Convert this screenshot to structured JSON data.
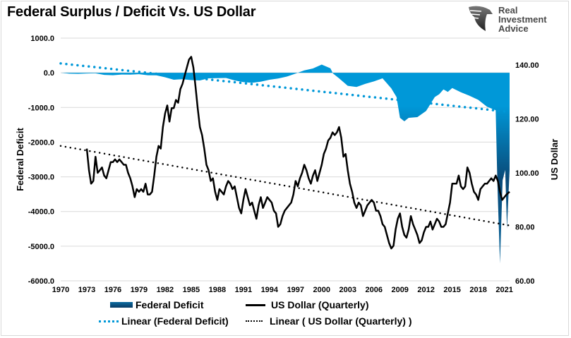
{
  "chart_data": {
    "type": "area+line",
    "title": "Federal Surplus / Deficit Vs. US Dollar",
    "brand": {
      "name_lines": [
        "Real",
        "Investment",
        "Advice"
      ]
    },
    "left_axis": {
      "label": "Federal Deficit",
      "range": [
        -6000,
        1000
      ],
      "ticks": [
        1000,
        0,
        -1000,
        -2000,
        -3000,
        -4000,
        -5000,
        -6000
      ],
      "tick_labels": [
        "1000.0",
        "0.0",
        "-1000.0",
        "-2000.0",
        "-3000.0",
        "-4000.0",
        "-5000.0",
        "-6000.0"
      ]
    },
    "right_axis": {
      "label": "US Dollar",
      "range": [
        60,
        150
      ],
      "ticks": [
        140,
        120,
        100,
        80,
        60
      ],
      "tick_labels": [
        "140.00",
        "120.00",
        "100.00",
        "80.00",
        "60.00"
      ]
    },
    "x_axis": {
      "range": [
        1970,
        2021.6
      ],
      "ticks": [
        1970,
        1973,
        1976,
        1979,
        1982,
        1985,
        1988,
        1991,
        1994,
        1997,
        2000,
        2003,
        2006,
        2009,
        2012,
        2015,
        2018,
        2021
      ],
      "tick_labels": [
        "1970",
        "1973",
        "1976",
        "1979",
        "1982",
        "1985",
        "1988",
        "1991",
        "1994",
        "1997",
        "2000",
        "2003",
        "2006",
        "2009",
        "2012",
        "2015",
        "2018",
        "2021"
      ]
    },
    "grid": true,
    "colors": {
      "deficit": "#0098d8",
      "deficit_dark": "#0a3c64",
      "dollar": "#000000",
      "deficit_trend": "#0098d8",
      "dollar_trend": "#000000",
      "grid": "#d9d9d9"
    },
    "series": [
      {
        "name": "Federal Deficit",
        "axis": "left",
        "style": "area",
        "points": [
          [
            1970,
            0
          ],
          [
            1971,
            -25
          ],
          [
            1972,
            -30
          ],
          [
            1973,
            -20
          ],
          [
            1974,
            -15
          ],
          [
            1975,
            -60
          ],
          [
            1976,
            -70
          ],
          [
            1977,
            -50
          ],
          [
            1978,
            -55
          ],
          [
            1979,
            -40
          ],
          [
            1980,
            -70
          ],
          [
            1981,
            -75
          ],
          [
            1982,
            -130
          ],
          [
            1983,
            -200
          ],
          [
            1984,
            -185
          ],
          [
            1985,
            -210
          ],
          [
            1986,
            -220
          ],
          [
            1987,
            -160
          ],
          [
            1988,
            -155
          ],
          [
            1989,
            -150
          ],
          [
            1990,
            -220
          ],
          [
            1991,
            -270
          ],
          [
            1992,
            -290
          ],
          [
            1993,
            -255
          ],
          [
            1994,
            -200
          ],
          [
            1995,
            -165
          ],
          [
            1996,
            -110
          ],
          [
            1997,
            -22
          ],
          [
            1998,
            70
          ],
          [
            1999,
            125
          ],
          [
            2000,
            236
          ],
          [
            2001,
            130
          ],
          [
            2001.3,
            -20
          ],
          [
            2002,
            -160
          ],
          [
            2003,
            -375
          ],
          [
            2004,
            -410
          ],
          [
            2005,
            -320
          ],
          [
            2006,
            -250
          ],
          [
            2007,
            -160
          ],
          [
            2008,
            -450
          ],
          [
            2008.6,
            -700
          ],
          [
            2009,
            -1300
          ],
          [
            2009.5,
            -1400
          ],
          [
            2010,
            -1300
          ],
          [
            2011,
            -1280
          ],
          [
            2012,
            -1100
          ],
          [
            2013,
            -700
          ],
          [
            2013.5,
            -620
          ],
          [
            2014,
            -480
          ],
          [
            2014.5,
            -550
          ],
          [
            2015,
            -440
          ],
          [
            2016,
            -560
          ],
          [
            2017,
            -665
          ],
          [
            2018,
            -780
          ],
          [
            2019,
            -980
          ],
          [
            2020,
            -1080
          ],
          [
            2020.2,
            -3200
          ],
          [
            2020.5,
            -5500
          ],
          [
            2020.8,
            -3100
          ],
          [
            2021.1,
            -2800
          ],
          [
            2021.3,
            -4500
          ],
          [
            2021.6,
            -2800
          ]
        ]
      },
      {
        "name": "US Dollar (Quarterly)",
        "axis": "right",
        "style": "line",
        "points": [
          [
            1973,
            109
          ],
          [
            1973.25,
            101
          ],
          [
            1973.5,
            96
          ],
          [
            1973.75,
            97
          ],
          [
            1974,
            106
          ],
          [
            1974.25,
            100
          ],
          [
            1974.5,
            101
          ],
          [
            1974.75,
            102
          ],
          [
            1975,
            99
          ],
          [
            1975.25,
            98
          ],
          [
            1975.5,
            101
          ],
          [
            1975.75,
            104
          ],
          [
            1976,
            104
          ],
          [
            1976.25,
            105
          ],
          [
            1976.5,
            104
          ],
          [
            1976.75,
            105
          ],
          [
            1977,
            104
          ],
          [
            1977.25,
            103
          ],
          [
            1977.5,
            103
          ],
          [
            1977.75,
            100
          ],
          [
            1978,
            98
          ],
          [
            1978.25,
            95
          ],
          [
            1978.5,
            91
          ],
          [
            1978.75,
            94
          ],
          [
            1979,
            93
          ],
          [
            1979.25,
            94
          ],
          [
            1979.5,
            93
          ],
          [
            1979.75,
            96
          ],
          [
            1980,
            92
          ],
          [
            1980.25,
            92
          ],
          [
            1980.5,
            93
          ],
          [
            1980.75,
            99
          ],
          [
            1981,
            106
          ],
          [
            1981.25,
            110
          ],
          [
            1981.5,
            109
          ],
          [
            1981.75,
            117
          ],
          [
            1982,
            122
          ],
          [
            1982.25,
            125
          ],
          [
            1982.5,
            119
          ],
          [
            1982.75,
            124
          ],
          [
            1983,
            124
          ],
          [
            1983.25,
            127
          ],
          [
            1983.5,
            126
          ],
          [
            1983.75,
            131
          ],
          [
            1984,
            133
          ],
          [
            1984.25,
            136
          ],
          [
            1984.5,
            139
          ],
          [
            1984.75,
            142
          ],
          [
            1985,
            143
          ],
          [
            1985.25,
            139
          ],
          [
            1985.5,
            132
          ],
          [
            1985.75,
            124
          ],
          [
            1986,
            117
          ],
          [
            1986.25,
            114
          ],
          [
            1986.5,
            109
          ],
          [
            1986.75,
            103
          ],
          [
            1987,
            101
          ],
          [
            1987.25,
            97
          ],
          [
            1987.5,
            98
          ],
          [
            1987.75,
            93
          ],
          [
            1988,
            90
          ],
          [
            1988.25,
            94
          ],
          [
            1988.5,
            93
          ],
          [
            1988.75,
            92
          ],
          [
            1989,
            95
          ],
          [
            1989.25,
            97
          ],
          [
            1989.5,
            96
          ],
          [
            1989.75,
            94
          ],
          [
            1990,
            95
          ],
          [
            1990.25,
            91
          ],
          [
            1990.5,
            87
          ],
          [
            1990.75,
            85
          ],
          [
            1991,
            90
          ],
          [
            1991.25,
            94
          ],
          [
            1991.5,
            91
          ],
          [
            1991.75,
            88
          ],
          [
            1992,
            89
          ],
          [
            1992.25,
            86
          ],
          [
            1992.5,
            83
          ],
          [
            1992.75,
            88
          ],
          [
            1993,
            91
          ],
          [
            1993.25,
            87
          ],
          [
            1993.5,
            89
          ],
          [
            1993.75,
            91
          ],
          [
            1994,
            90
          ],
          [
            1994.25,
            89
          ],
          [
            1994.5,
            86
          ],
          [
            1994.75,
            85
          ],
          [
            1995,
            80
          ],
          [
            1995.25,
            81
          ],
          [
            1995.5,
            84
          ],
          [
            1995.75,
            86
          ],
          [
            1996,
            87
          ],
          [
            1996.25,
            88
          ],
          [
            1996.5,
            89
          ],
          [
            1996.75,
            92
          ],
          [
            1997,
            97
          ],
          [
            1997.25,
            95
          ],
          [
            1997.5,
            98
          ],
          [
            1997.75,
            100
          ],
          [
            1998,
            103
          ],
          [
            1998.25,
            101
          ],
          [
            1998.5,
            98
          ],
          [
            1998.75,
            96
          ],
          [
            1999,
            99
          ],
          [
            1999.25,
            101
          ],
          [
            1999.5,
            97
          ],
          [
            1999.75,
            100
          ],
          [
            2000,
            103
          ],
          [
            2000.25,
            107
          ],
          [
            2000.5,
            109
          ],
          [
            2000.75,
            112
          ],
          [
            2001,
            113
          ],
          [
            2001.25,
            115
          ],
          [
            2001.5,
            114
          ],
          [
            2001.75,
            115
          ],
          [
            2002,
            117
          ],
          [
            2002.25,
            113
          ],
          [
            2002.5,
            106
          ],
          [
            2002.75,
            107
          ],
          [
            2003,
            101
          ],
          [
            2003.25,
            96
          ],
          [
            2003.5,
            93
          ],
          [
            2003.75,
            89
          ],
          [
            2004,
            87
          ],
          [
            2004.25,
            89
          ],
          [
            2004.5,
            88
          ],
          [
            2004.75,
            84
          ],
          [
            2005,
            86
          ],
          [
            2005.25,
            88
          ],
          [
            2005.5,
            89
          ],
          [
            2005.75,
            90
          ],
          [
            2006,
            89
          ],
          [
            2006.25,
            86
          ],
          [
            2006.5,
            86
          ],
          [
            2006.75,
            84
          ],
          [
            2007,
            81
          ],
          [
            2007.25,
            80
          ],
          [
            2007.5,
            77
          ],
          [
            2007.75,
            74
          ],
          [
            2008,
            72
          ],
          [
            2008.25,
            73
          ],
          [
            2008.5,
            79
          ],
          [
            2008.75,
            83
          ],
          [
            2009,
            85
          ],
          [
            2009.25,
            80
          ],
          [
            2009.5,
            77
          ],
          [
            2009.75,
            76
          ],
          [
            2010,
            79
          ],
          [
            2010.25,
            84
          ],
          [
            2010.5,
            81
          ],
          [
            2010.75,
            79
          ],
          [
            2011,
            77
          ],
          [
            2011.25,
            74
          ],
          [
            2011.5,
            75
          ],
          [
            2011.75,
            78
          ],
          [
            2012,
            80
          ],
          [
            2012.25,
            80
          ],
          [
            2012.5,
            82
          ],
          [
            2012.75,
            79
          ],
          [
            2013,
            81
          ],
          [
            2013.25,
            83
          ],
          [
            2013.5,
            82
          ],
          [
            2013.75,
            80
          ],
          [
            2014,
            80
          ],
          [
            2014.25,
            81
          ],
          [
            2014.5,
            85
          ],
          [
            2014.75,
            89
          ],
          [
            2015,
            96
          ],
          [
            2015.25,
            96
          ],
          [
            2015.5,
            96
          ],
          [
            2015.75,
            99
          ],
          [
            2016,
            95
          ],
          [
            2016.25,
            94
          ],
          [
            2016.5,
            95
          ],
          [
            2016.75,
            102
          ],
          [
            2017,
            100
          ],
          [
            2017.25,
            96
          ],
          [
            2017.5,
            93
          ],
          [
            2017.75,
            92
          ],
          [
            2018,
            90
          ],
          [
            2018.25,
            94
          ],
          [
            2018.5,
            95
          ],
          [
            2018.75,
            96
          ],
          [
            2019,
            96
          ],
          [
            2019.25,
            97
          ],
          [
            2019.5,
            98
          ],
          [
            2019.75,
            97
          ],
          [
            2020,
            99
          ],
          [
            2020.25,
            97
          ],
          [
            2020.5,
            93
          ],
          [
            2020.75,
            90
          ],
          [
            2021,
            91
          ],
          [
            2021.25,
            92
          ],
          [
            2021.6,
            93
          ]
        ]
      }
    ],
    "trendlines": [
      {
        "name": "Linear (Federal Deficit)",
        "axis": "left",
        "from": [
          1970,
          270
        ],
        "to": [
          2021.6,
          -1130
        ]
      },
      {
        "name": "Linear ( US Dollar (Quarterly) )",
        "axis": "right",
        "from": [
          1970,
          110
        ],
        "to": [
          2021.6,
          80.5
        ]
      }
    ],
    "legend": {
      "placement": "bottom",
      "entries": [
        {
          "label": "Federal Deficit",
          "kind": "area"
        },
        {
          "label": "US Dollar (Quarterly)",
          "kind": "line"
        },
        {
          "label": "Linear (Federal Deficit)",
          "kind": "dotted-blue"
        },
        {
          "label": "Linear ( US Dollar (Quarterly) )",
          "kind": "dotted-black"
        }
      ]
    }
  }
}
